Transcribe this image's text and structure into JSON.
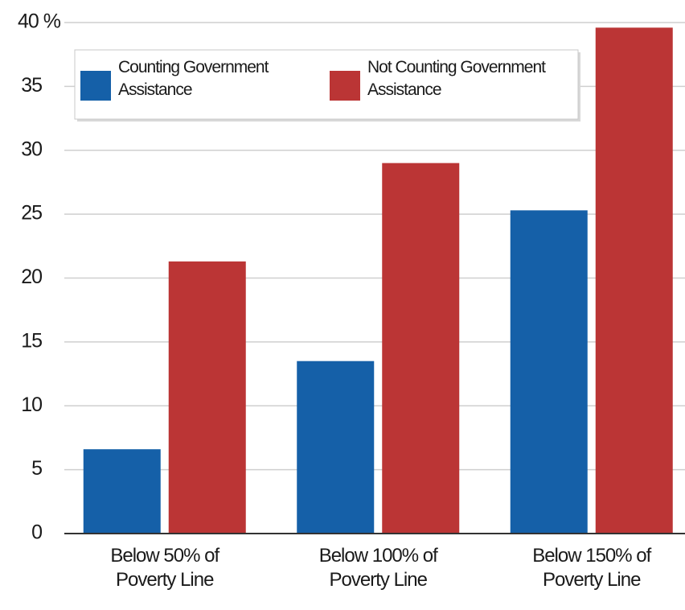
{
  "chart_data": {
    "type": "bar",
    "categories": [
      "Below 50% of Poverty Line",
      "Below 100% of Poverty Line",
      "Below 150% of Poverty Line"
    ],
    "series": [
      {
        "name": "Counting Government Assistance",
        "color": "#1560a8",
        "values": [
          6.6,
          13.5,
          25.3
        ]
      },
      {
        "name": "Not Counting Government Assistance",
        "color": "#bb3535",
        "values": [
          21.3,
          29.0,
          39.6
        ]
      }
    ],
    "ylim": [
      0,
      40
    ],
    "yticks": [
      0,
      5,
      10,
      15,
      20,
      25,
      30,
      35,
      {
        "value": 40,
        "label": "40 %"
      }
    ],
    "grid": true
  }
}
